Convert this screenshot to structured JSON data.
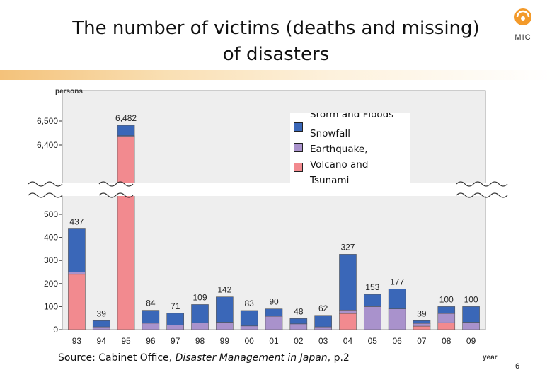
{
  "slide": {
    "title_line1": "The number of victims (deaths and missing)",
    "title_line2": "of disasters",
    "logo_text": "MIC",
    "source_prefix": "Source: Cabinet Office, ",
    "source_title": "Disaster Management in Japan",
    "source_suffix": ", p.2",
    "page_number": "6"
  },
  "colors": {
    "storm": "#3a67b8",
    "snow": "#a992cc",
    "quake": "#f28a8f",
    "plot_bg": "#eeeeee",
    "accent": "#f39a2a"
  },
  "chart_data": {
    "type": "bar",
    "stacked": true,
    "ylabel": "persons",
    "xlabel": "year",
    "categories": [
      "93",
      "94",
      "95",
      "96",
      "97",
      "98",
      "99",
      "00",
      "01",
      "02",
      "03",
      "04",
      "05",
      "06",
      "07",
      "08",
      "09"
    ],
    "totals": [
      437,
      39,
      6482,
      84,
      71,
      109,
      142,
      83,
      90,
      48,
      62,
      327,
      153,
      177,
      39,
      100,
      100
    ],
    "total_labels": [
      "437",
      "39",
      "6,482",
      "84",
      "71",
      "109",
      "142",
      "83",
      "90",
      "48",
      "62",
      "327",
      "153",
      "177",
      "39",
      "100",
      "100"
    ],
    "series": [
      {
        "name": "Earthquake, Volcano and Tsunami",
        "key": "quake",
        "values": [
          240,
          0,
          6437,
          0,
          0,
          0,
          0,
          0,
          0,
          0,
          0,
          70,
          0,
          0,
          15,
          30,
          0
        ]
      },
      {
        "name": "Snowfall",
        "key": "snow",
        "values": [
          10,
          12,
          2,
          28,
          20,
          30,
          32,
          16,
          58,
          25,
          12,
          15,
          100,
          90,
          12,
          40,
          32
        ]
      },
      {
        "name": "Storm and Floods",
        "key": "storm",
        "values": [
          187,
          27,
          43,
          56,
          51,
          79,
          110,
          67,
          32,
          23,
          50,
          242,
          53,
          87,
          12,
          30,
          68
        ]
      }
    ],
    "yticks_lower": [
      0,
      100,
      200,
      300,
      400,
      500
    ],
    "ytick_labels_lower": [
      "0",
      "100",
      "200",
      "300",
      "400",
      "500"
    ],
    "yticks_upper": [
      6400,
      6500
    ],
    "ytick_labels_upper": [
      "6,400",
      "6,500"
    ],
    "legend": {
      "entries": [
        "Storm and Floods",
        "Snowfall",
        "Earthquake,",
        "Volcano and",
        "Tsunami"
      ],
      "position": "top-center"
    },
    "axis_break": "between 500 and 6,400"
  }
}
